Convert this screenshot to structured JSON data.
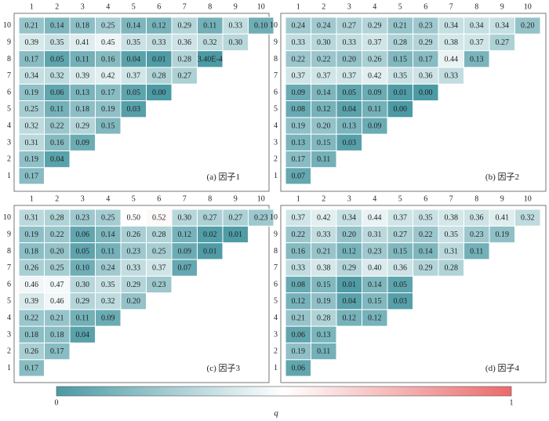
{
  "chart_data": [
    {
      "type": "heatmap",
      "label": "(a) 因子1",
      "x": [
        "1",
        "2",
        "3",
        "4",
        "5",
        "6",
        "7",
        "8",
        "9",
        "10"
      ],
      "y": [
        "1",
        "2",
        "3",
        "4",
        "5",
        "6",
        "7",
        "8",
        "9",
        "10"
      ],
      "values": [
        [
          "0.17"
        ],
        [
          "0.19",
          "0.04"
        ],
        [
          "0.31",
          "0.16",
          "0.09"
        ],
        [
          "0.32",
          "0.22",
          "0.29",
          "0.15"
        ],
        [
          "0.25",
          "0.11",
          "0.18",
          "0.19",
          "0.03"
        ],
        [
          "0.19",
          "0.06",
          "0.13",
          "0.17",
          "0.05",
          "0.00"
        ],
        [
          "0.34",
          "0.32",
          "0.39",
          "0.42",
          "0.37",
          "0.28",
          "0.27"
        ],
        [
          "0.17",
          "0.05",
          "0.11",
          "0.16",
          "0.04",
          "0.01",
          "0.28",
          "3.40E-4"
        ],
        [
          "0.39",
          "0.35",
          "0.41",
          "0.45",
          "0.35",
          "0.33",
          "0.36",
          "0.32",
          "0.30"
        ],
        [
          "0.21",
          "0.14",
          "0.18",
          "0.25",
          "0.14",
          "0.12",
          "0.29",
          "0.11",
          "0.33",
          "0.10"
        ]
      ]
    },
    {
      "type": "heatmap",
      "label": "(b) 因子2",
      "x": [
        "1",
        "2",
        "3",
        "4",
        "5",
        "6",
        "7",
        "8",
        "9",
        "10"
      ],
      "y": [
        "1",
        "2",
        "3",
        "4",
        "5",
        "6",
        "7",
        "8",
        "9",
        "10"
      ],
      "values": [
        [
          "0.07"
        ],
        [
          "0.17",
          "0.11"
        ],
        [
          "0.13",
          "0.15",
          "0.03"
        ],
        [
          "0.19",
          "0.20",
          "0.13",
          "0.09"
        ],
        [
          "0.08",
          "0.12",
          "0.04",
          "0.11",
          "0.00"
        ],
        [
          "0.09",
          "0.14",
          "0.05",
          "0.09",
          "0.01",
          "0.00"
        ],
        [
          "0.37",
          "0.37",
          "0.37",
          "0.42",
          "0.35",
          "0.36",
          "0.33"
        ],
        [
          "0.22",
          "0.22",
          "0.20",
          "0.26",
          "0.15",
          "0.17",
          "0.44",
          "0.13"
        ],
        [
          "0.33",
          "0.30",
          "0.33",
          "0.37",
          "0.28",
          "0.29",
          "0.38",
          "0.37",
          "0.27"
        ],
        [
          "0.24",
          "0.24",
          "0.27",
          "0.29",
          "0.21",
          "0.23",
          "0.34",
          "0.34",
          "0.34",
          "0.20"
        ]
      ]
    },
    {
      "type": "heatmap",
      "label": "(c) 因子3",
      "x": [
        "1",
        "2",
        "3",
        "4",
        "5",
        "6",
        "7",
        "8",
        "9",
        "10"
      ],
      "y": [
        "1",
        "2",
        "3",
        "4",
        "5",
        "6",
        "7",
        "8",
        "9",
        "10"
      ],
      "values": [
        [
          "0.17"
        ],
        [
          "0.26",
          "0.17"
        ],
        [
          "0.18",
          "0.18",
          "0.04"
        ],
        [
          "0.22",
          "0.21",
          "0.11",
          "0.09"
        ],
        [
          "0.39",
          "0.46",
          "0.29",
          "0.32",
          "0.20"
        ],
        [
          "0.46",
          "0.47",
          "0.30",
          "0.35",
          "0.29",
          "0.23"
        ],
        [
          "0.26",
          "0.25",
          "0.10",
          "0.24",
          "0.33",
          "0.37",
          "0.07"
        ],
        [
          "0.18",
          "0.20",
          "0.05",
          "0.11",
          "0.23",
          "0.25",
          "0.09",
          "0.01"
        ],
        [
          "0.19",
          "0.22",
          "0.06",
          "0.14",
          "0.26",
          "0.28",
          "0.12",
          "0.02",
          "0.01"
        ],
        [
          "0.31",
          "0.28",
          "0.23",
          "0.25",
          "0.50",
          "0.52",
          "0.30",
          "0.27",
          "0.27",
          "0.23"
        ]
      ]
    },
    {
      "type": "heatmap",
      "label": "(d) 因子4",
      "x": [
        "1",
        "2",
        "3",
        "4",
        "5",
        "6",
        "7",
        "8",
        "9",
        "10"
      ],
      "y": [
        "1",
        "2",
        "3",
        "4",
        "5",
        "6",
        "7",
        "8",
        "9",
        "10"
      ],
      "values": [
        [
          "0.06"
        ],
        [
          "0.19",
          "0.11"
        ],
        [
          "0.06",
          "0.13"
        ],
        [
          "0.21",
          "0.28",
          "0.12",
          "0.12"
        ],
        [
          "0.12",
          "0.19",
          "0.04",
          "0.15",
          "0.03"
        ],
        [
          "0.08",
          "0.15",
          "0.01",
          "0.14",
          "0.05"
        ],
        [
          "0.33",
          "0.38",
          "0.29",
          "0.40",
          "0.36",
          "0.29",
          "0.28"
        ],
        [
          "0.16",
          "0.21",
          "0.12",
          "0.23",
          "0.15",
          "0.14",
          "0.31",
          "0.11"
        ],
        [
          "0.22",
          "0.33",
          "0.20",
          "0.31",
          "0.27",
          "0.22",
          "0.35",
          "0.23",
          "0.19"
        ],
        [
          "0.37",
          "0.42",
          "0.34",
          "0.44",
          "0.37",
          "0.35",
          "0.38",
          "0.36",
          "0.41",
          "0.32"
        ]
      ]
    }
  ],
  "colorbar": {
    "min_label": "0",
    "max_label": "1",
    "title": "q",
    "colors": {
      "low": "#4b9aa4",
      "mid": "#ffffff",
      "high": "#eb6b6b"
    }
  }
}
